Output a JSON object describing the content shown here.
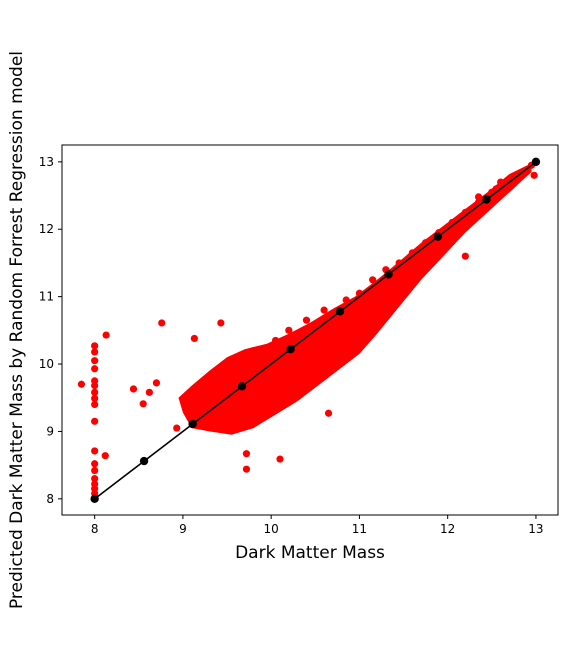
{
  "chart_data": {
    "type": "scatter",
    "title": "",
    "xlabel": "Dark Matter Mass",
    "ylabel": "Predicted Dark Matter Mass by Random Forrest Regression model",
    "xlim": [
      7.63,
      13.25
    ],
    "ylim": [
      7.76,
      13.25
    ],
    "x_ticks": [
      8,
      9,
      10,
      11,
      12,
      13
    ],
    "y_ticks": [
      8,
      9,
      10,
      11,
      12,
      13
    ],
    "grid": false,
    "colors": {
      "scatter": "#ff0000",
      "reference": "#000000"
    },
    "series": [
      {
        "kind": "scatter",
        "points": [
          [
            8.0,
            10.27
          ],
          [
            8.0,
            10.18
          ],
          [
            8.0,
            10.05
          ],
          [
            8.0,
            9.93
          ],
          [
            8.0,
            9.75
          ],
          [
            8.0,
            9.68
          ],
          [
            8.0,
            9.58
          ],
          [
            8.0,
            9.49
          ],
          [
            8.0,
            9.4
          ],
          [
            8.0,
            9.15
          ],
          [
            8.0,
            8.71
          ],
          [
            8.0,
            8.52
          ],
          [
            8.0,
            8.42
          ],
          [
            8.0,
            8.3
          ],
          [
            8.0,
            8.22
          ],
          [
            8.0,
            8.15
          ],
          [
            8.0,
            8.08
          ],
          [
            7.85,
            9.7
          ],
          [
            8.13,
            10.43
          ],
          [
            8.12,
            8.64
          ],
          [
            8.44,
            9.63
          ],
          [
            8.55,
            9.41
          ],
          [
            8.62,
            9.58
          ],
          [
            8.7,
            9.72
          ],
          [
            8.76,
            10.61
          ],
          [
            8.93,
            9.05
          ],
          [
            9.13,
            10.38
          ],
          [
            9.43,
            10.61
          ],
          [
            9.72,
            8.67
          ],
          [
            9.72,
            8.44
          ],
          [
            10.1,
            8.59
          ],
          [
            10.65,
            9.27
          ],
          [
            11.07,
            10.5
          ],
          [
            12.2,
            11.6
          ],
          [
            9.1,
            9.45
          ],
          [
            9.25,
            9.7
          ],
          [
            9.35,
            9.3
          ],
          [
            9.45,
            9.85
          ],
          [
            9.55,
            9.45
          ],
          [
            9.6,
            10.05
          ],
          [
            9.7,
            9.6
          ],
          [
            9.8,
            10.2
          ],
          [
            9.85,
            9.4
          ],
          [
            9.95,
            9.9
          ],
          [
            10.05,
            10.35
          ],
          [
            10.1,
            9.7
          ],
          [
            10.2,
            10.5
          ],
          [
            10.3,
            10.05
          ],
          [
            10.4,
            10.65
          ],
          [
            10.5,
            10.3
          ],
          [
            10.6,
            10.8
          ],
          [
            10.7,
            10.55
          ],
          [
            10.85,
            10.95
          ],
          [
            11.0,
            11.05
          ],
          [
            11.15,
            11.25
          ],
          [
            11.3,
            11.4
          ],
          [
            11.45,
            11.5
          ],
          [
            11.6,
            11.65
          ],
          [
            11.75,
            11.8
          ],
          [
            11.9,
            11.95
          ],
          [
            12.05,
            12.1
          ],
          [
            12.2,
            12.25
          ],
          [
            12.35,
            12.4
          ],
          [
            12.5,
            12.55
          ],
          [
            12.6,
            12.7
          ],
          [
            12.75,
            12.7
          ],
          [
            12.85,
            12.85
          ],
          [
            12.95,
            12.95
          ],
          [
            12.98,
            12.8
          ],
          [
            12.9,
            12.88
          ],
          [
            12.35,
            12.48
          ],
          [
            12.55,
            12.6
          ],
          [
            12.7,
            12.62
          ],
          [
            11.95,
            11.85
          ],
          [
            11.7,
            11.55
          ],
          [
            11.4,
            11.3
          ],
          [
            11.2,
            11.12
          ],
          [
            10.95,
            10.8
          ]
        ]
      },
      {
        "kind": "line",
        "points": [
          [
            8.0,
            8.0
          ],
          [
            8.56,
            8.56
          ],
          [
            9.11,
            9.11
          ],
          [
            9.67,
            9.67
          ],
          [
            10.22,
            10.22
          ],
          [
            10.78,
            10.78
          ],
          [
            11.33,
            11.33
          ],
          [
            11.89,
            11.89
          ],
          [
            12.44,
            12.44
          ],
          [
            13.0,
            13.0
          ]
        ]
      }
    ]
  }
}
